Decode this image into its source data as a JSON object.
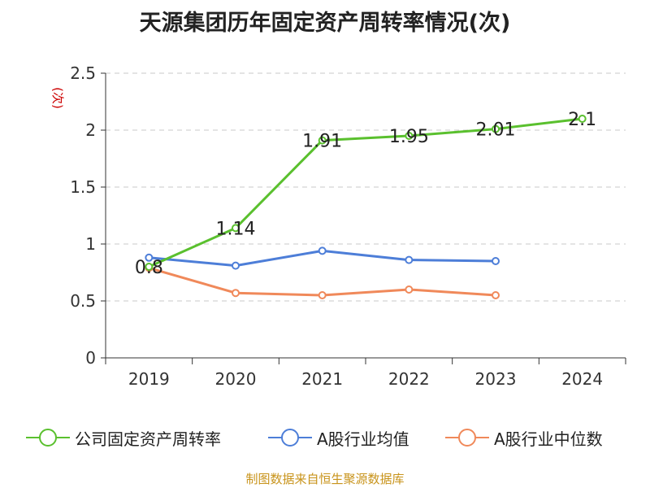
{
  "title": "天源集团历年固定资产周转率情况(次)",
  "y_unit": "(次)",
  "source": "制图数据来自恒生聚源数据库",
  "chart_data": {
    "type": "line",
    "title": "天源集团历年固定资产周转率情况(次)",
    "xlabel": "",
    "ylabel": "(次)",
    "ylim": [
      0,
      2.5
    ],
    "y_ticks": [
      "0",
      "0.5",
      "1",
      "1.5",
      "2",
      "2.5"
    ],
    "grid": true,
    "legend_position": "bottom",
    "categories": [
      "2019",
      "2020",
      "2021",
      "2022",
      "2023",
      "2024"
    ],
    "series": [
      {
        "name": "公司固定资产周转率",
        "color": "#5ac02e",
        "values": [
          0.8,
          1.14,
          1.91,
          1.95,
          2.01,
          2.1
        ],
        "labels": [
          "0.8",
          "1.14",
          "1.91",
          "1.95",
          "2.01",
          "2.1"
        ]
      },
      {
        "name": "A股行业均值",
        "color": "#4d7ed8",
        "values": [
          0.88,
          0.81,
          0.94,
          0.86,
          0.85,
          null
        ]
      },
      {
        "name": "A股行业中位数",
        "color": "#f0895a",
        "values": [
          0.79,
          0.57,
          0.55,
          0.6,
          0.55,
          null
        ]
      }
    ]
  }
}
